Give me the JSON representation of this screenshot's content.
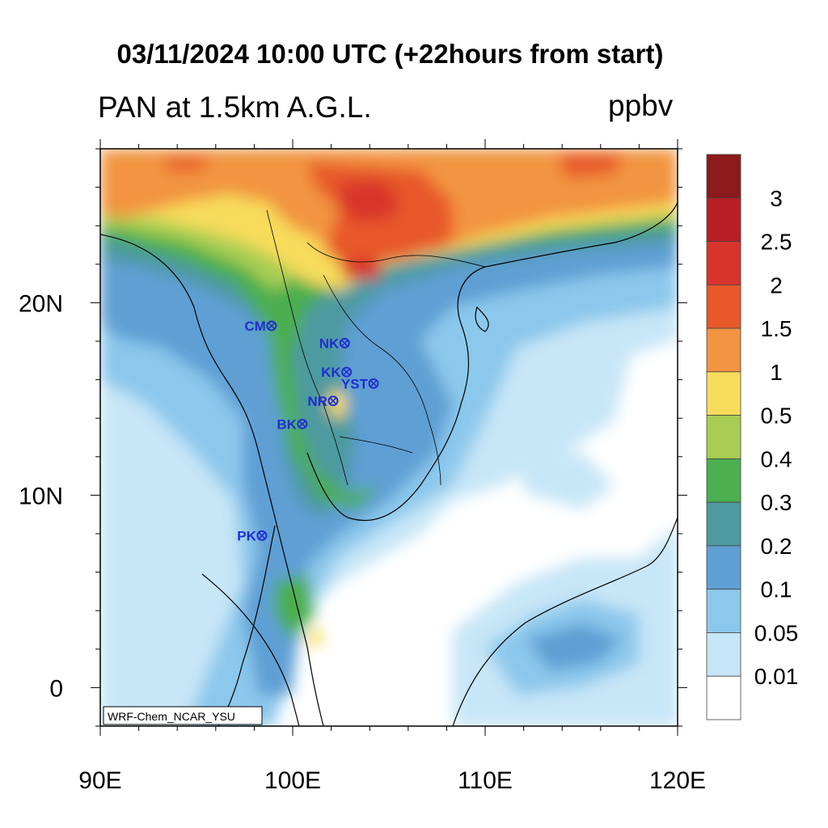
{
  "title": "03/11/2024 10:00 UTC (+22hours from start)",
  "subtitle": "PAN at 1.5km A.G.L.",
  "units": "ppbv",
  "watermark": "WRF-Chem_NCAR_YSU",
  "x_tick_labels": [
    "90E",
    "100E",
    "110E",
    "120E"
  ],
  "y_tick_labels": [
    "20N",
    "10N",
    "0"
  ],
  "colorbar": {
    "levels": [
      "3",
      "2.5",
      "2",
      "1.5",
      "1",
      "0.5",
      "0.4",
      "0.3",
      "0.2",
      "0.1",
      "0.05",
      "0.01"
    ],
    "colors": [
      "#8c1a1a",
      "#b71f25",
      "#d9342b",
      "#e8582b",
      "#f29441",
      "#f7dc5c",
      "#a8cd52",
      "#4caf50",
      "#4d9aa0",
      "#5e9fd4",
      "#8cc8ec",
      "#c7e6f7",
      "#ffffff"
    ]
  },
  "stations": [
    {
      "name": "CM",
      "lon": 98.9,
      "lat": 18.8
    },
    {
      "name": "NK",
      "lon": 102.7,
      "lat": 17.9
    },
    {
      "name": "KK",
      "lon": 102.8,
      "lat": 16.4
    },
    {
      "name": "YST",
      "lon": 104.2,
      "lat": 15.8
    },
    {
      "name": "NR",
      "lon": 102.1,
      "lat": 14.9
    },
    {
      "name": "BK",
      "lon": 100.5,
      "lat": 13.7
    },
    {
      "name": "PK",
      "lon": 98.4,
      "lat": 7.9
    }
  ],
  "colors": {
    "station": "#1f2fd0",
    "coastline": "#000000"
  }
}
